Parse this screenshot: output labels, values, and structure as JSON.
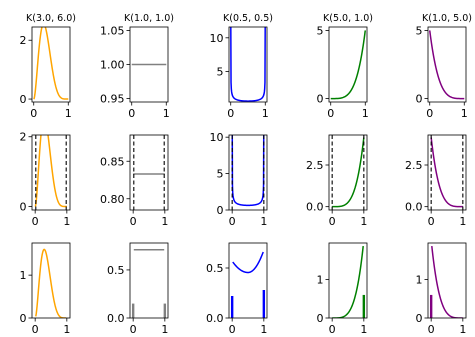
{
  "chart_data": [
    {
      "type": "line",
      "title": "K(3.0, 6.0)",
      "a": 3.0,
      "b": 6.0,
      "color": "#ffa500",
      "xlim": [
        -0.05,
        1.05
      ],
      "ylim": [
        -0.1,
        2.45
      ],
      "xticks": [
        0,
        1
      ],
      "yticks": [
        0,
        2
      ],
      "curve_domain": [
        0,
        1
      ]
    },
    {
      "type": "line",
      "title": "K(1.0, 1.0)",
      "a": 1.0,
      "b": 1.0,
      "color": "#808080",
      "xlim": [
        -0.05,
        1.05
      ],
      "ylim": [
        0.945,
        1.055
      ],
      "xticks": [
        0,
        1
      ],
      "yticks": [
        0.95,
        1.0,
        1.05
      ],
      "ytick_labels": [
        "0.95",
        "1.00",
        "1.05"
      ],
      "curve_domain": [
        0,
        1
      ]
    },
    {
      "type": "line",
      "title": "K(0.5, 0.5)",
      "a": 0.5,
      "b": 0.5,
      "color": "#0000ff",
      "xlim": [
        -0.05,
        1.05
      ],
      "ylim": [
        0.5,
        11.6
      ],
      "xticks": [
        0,
        1
      ],
      "yticks": [
        5,
        10
      ],
      "curve_domain": [
        0.0005,
        0.9995
      ]
    },
    {
      "type": "line",
      "title": "K(5.0, 1.0)",
      "a": 5.0,
      "b": 1.0,
      "color": "#008000",
      "xlim": [
        -0.05,
        1.05
      ],
      "ylim": [
        -0.25,
        5.25
      ],
      "xticks": [
        0,
        1
      ],
      "yticks": [
        0,
        5
      ],
      "curve_domain": [
        0,
        1
      ]
    },
    {
      "type": "line",
      "title": "K(1.0, 5.0)",
      "a": 1.0,
      "b": 5.0,
      "color": "#800080",
      "xlim": [
        -0.05,
        1.05
      ],
      "ylim": [
        -0.25,
        5.25
      ],
      "xticks": [
        0,
        1
      ],
      "yticks": [
        0,
        5
      ],
      "curve_domain": [
        0,
        1
      ]
    },
    {
      "type": "line",
      "title": "",
      "a": 3.0,
      "b": 6.0,
      "color": "#ffa500",
      "xlim": [
        -0.1,
        1.1
      ],
      "ylim": [
        -0.1,
        2.05
      ],
      "xticks": [
        0,
        1
      ],
      "yticks": [
        0,
        2
      ],
      "vlines": [
        0.02,
        0.98
      ],
      "curve_domain": [
        0,
        1
      ]
    },
    {
      "type": "line",
      "title": "",
      "a": 1.0,
      "b": 1.0,
      "color": "#808080",
      "xlim": [
        -0.1,
        1.1
      ],
      "ylim": [
        0.785,
        0.885
      ],
      "xticks": [
        0,
        1
      ],
      "yticks": [
        0.8,
        0.85
      ],
      "ytick_labels": [
        "0.80",
        "0.85"
      ],
      "vlines": [
        0.02,
        0.98
      ],
      "constant": 0.833,
      "curve_domain": [
        0,
        1
      ]
    },
    {
      "type": "line",
      "title": "",
      "a": 0.5,
      "b": 0.5,
      "color": "#0000ff",
      "xlim": [
        -0.1,
        1.1
      ],
      "ylim": [
        0,
        10.3
      ],
      "xticks": [
        0,
        1
      ],
      "yticks": [
        0,
        5,
        10
      ],
      "vlines": [
        0.0,
        1.0
      ],
      "curve_domain": [
        0.0006,
        0.9994
      ]
    },
    {
      "type": "line",
      "title": "",
      "a": 5.0,
      "b": 1.0,
      "color": "#008000",
      "xlim": [
        -0.1,
        1.1
      ],
      "ylim": [
        -0.2,
        4.3
      ],
      "xticks": [
        0,
        1
      ],
      "yticks": [
        0.0,
        2.5
      ],
      "ytick_labels": [
        "0.0",
        "2.5"
      ],
      "vlines": [
        0.0,
        1.0
      ],
      "scale": 0.83,
      "curve_domain": [
        0,
        1
      ]
    },
    {
      "type": "line",
      "title": "",
      "a": 1.0,
      "b": 5.0,
      "color": "#800080",
      "xlim": [
        -0.1,
        1.1
      ],
      "ylim": [
        -0.2,
        4.3
      ],
      "xticks": [
        0,
        1
      ],
      "yticks": [
        0.0,
        2.5
      ],
      "ytick_labels": [
        "0.0",
        "2.5"
      ],
      "vlines": [
        0.0,
        1.0
      ],
      "scale": 0.83,
      "curve_domain": [
        0,
        1
      ]
    },
    {
      "type": "line",
      "title": "",
      "a": 3.0,
      "b": 6.0,
      "color": "#ffa500",
      "xlim": [
        -0.1,
        1.1
      ],
      "ylim": [
        0,
        1.75
      ],
      "xticks": [
        0,
        1
      ],
      "yticks": [
        0,
        1
      ],
      "curve_domain": [
        0.02,
        0.98
      ],
      "curve_max": 1.6
    },
    {
      "type": "line",
      "title": "",
      "a": 1.0,
      "b": 1.0,
      "color": "#808080",
      "xlim": [
        -0.1,
        1.1
      ],
      "ylim": [
        0,
        0.78
      ],
      "xticks": [
        0,
        1
      ],
      "yticks": [
        0.0,
        0.5
      ],
      "ytick_labels": [
        "0.0",
        "0.5"
      ],
      "constant": 0.71,
      "curve_domain": [
        0.02,
        0.98
      ],
      "stems": [
        [
          0,
          0.15
        ],
        [
          1,
          0.15
        ]
      ]
    },
    {
      "type": "line",
      "title": "",
      "a": 0.5,
      "b": 0.5,
      "color": "#0000ff",
      "xlim": [
        -0.1,
        1.1
      ],
      "ylim": [
        0,
        0.75
      ],
      "xticks": [
        0,
        1
      ],
      "yticks": [
        0.0,
        0.5
      ],
      "ytick_labels": [
        "0.0",
        "0.5"
      ],
      "curve_domain": [
        0.02,
        0.98
      ],
      "curve_endpoints": [
        0.56,
        0.66
      ],
      "curve_min": 0.455,
      "stems": [
        [
          0,
          0.22
        ],
        [
          1,
          0.28
        ]
      ]
    },
    {
      "type": "line",
      "title": "",
      "a": 5.0,
      "b": 1.0,
      "color": "#008000",
      "xlim": [
        -0.1,
        1.1
      ],
      "ylim": [
        0,
        1.95
      ],
      "xticks": [
        0,
        1
      ],
      "yticks": [
        0,
        1
      ],
      "curve_domain": [
        0,
        0.98
      ],
      "curve_max": 1.87,
      "stems": [
        [
          1,
          0.6
        ]
      ]
    },
    {
      "type": "line",
      "title": "",
      "a": 1.0,
      "b": 5.0,
      "color": "#800080",
      "xlim": [
        -0.1,
        1.1
      ],
      "ylim": [
        0,
        1.95
      ],
      "xticks": [
        0,
        1
      ],
      "yticks": [
        0,
        1
      ],
      "curve_domain": [
        0.02,
        1
      ],
      "curve_max": 1.87,
      "stems": [
        [
          0,
          0.6
        ]
      ]
    }
  ]
}
